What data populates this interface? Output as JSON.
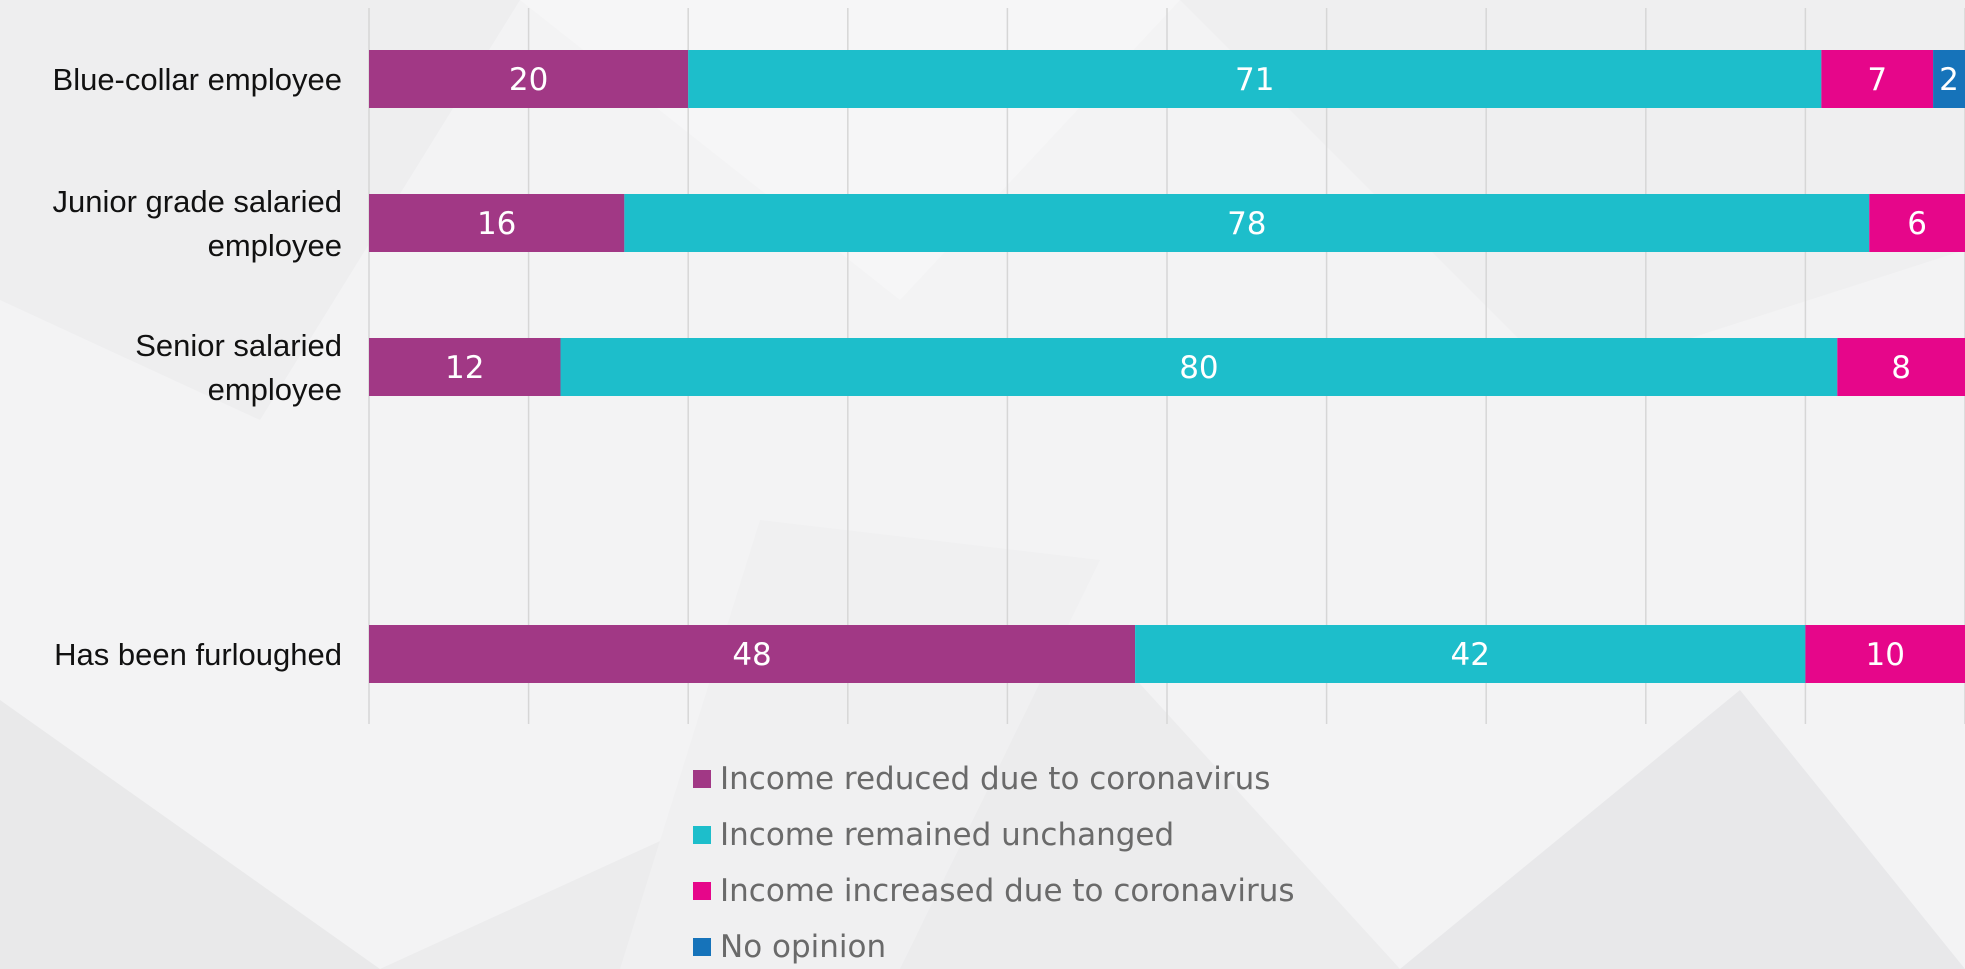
{
  "chart_data": {
    "type": "bar",
    "orientation": "horizontal",
    "stacked": true,
    "title": "",
    "xlabel": "",
    "ylabel": "",
    "xlim": [
      0,
      100
    ],
    "grid": true,
    "legend_position": "bottom",
    "categories": [
      {
        "lines": [
          "Blue-collar employee"
        ]
      },
      {
        "lines": [
          "Junior grade salaried",
          "employee"
        ]
      },
      {
        "lines": [
          "Senior salaried",
          "employee"
        ]
      },
      {
        "lines": [
          ""
        ]
      },
      {
        "lines": [
          "Has been furloughed"
        ]
      }
    ],
    "series": [
      {
        "name": "Income reduced due to coronavirus",
        "color": "#a13885",
        "values": [
          20,
          16,
          12,
          null,
          48
        ]
      },
      {
        "name": "Income remained unchanged",
        "color": "#1dbecb",
        "values": [
          71,
          78,
          80,
          null,
          42
        ]
      },
      {
        "name": "Income increased due to coronavirus",
        "color": "#e6068a",
        "values": [
          7,
          6,
          8,
          null,
          10
        ]
      },
      {
        "name": "No opinion",
        "color": "#1673ba",
        "values": [
          2,
          1,
          0,
          null,
          0
        ]
      }
    ]
  }
}
